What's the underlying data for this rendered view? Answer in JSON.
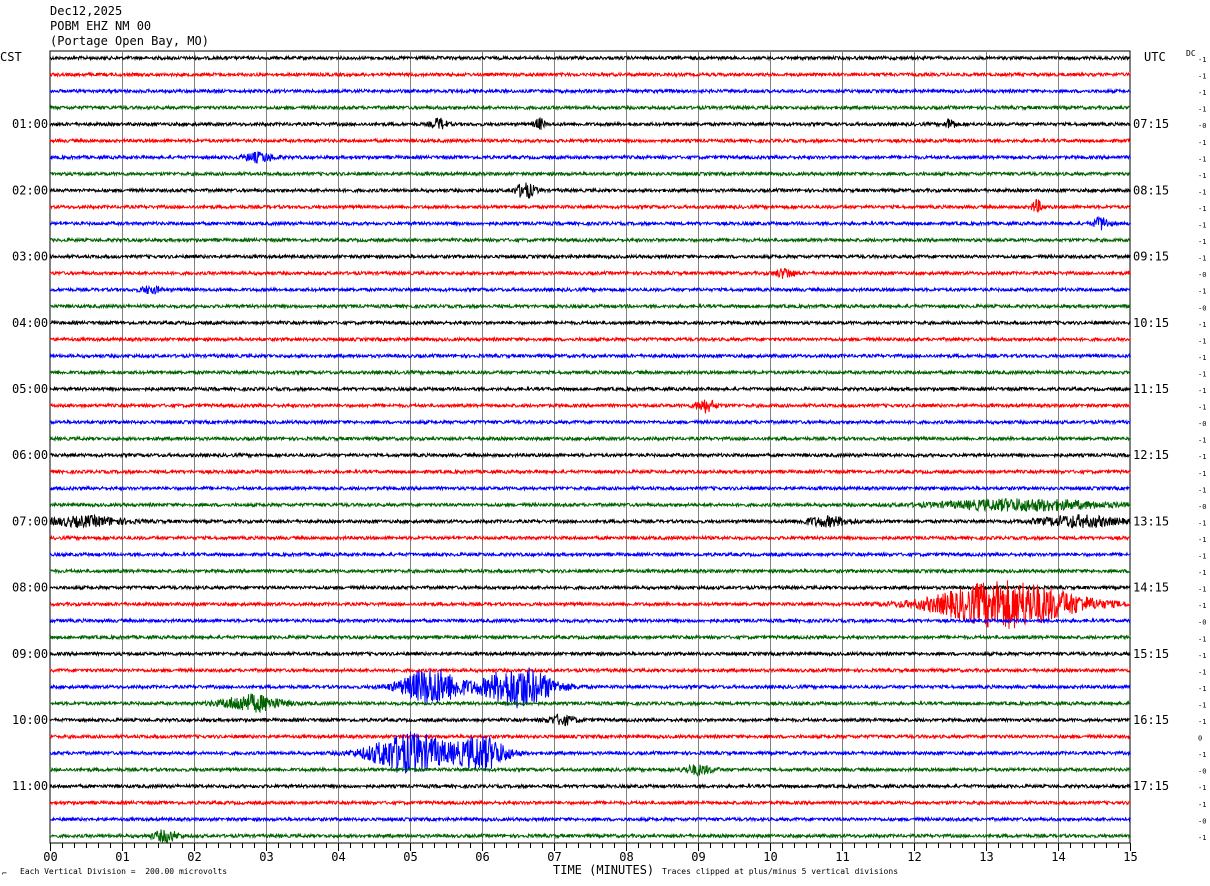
{
  "header": {
    "date": "Dec12,2025",
    "station": "POBM EHZ NM 00",
    "location": "(Portage Open Bay, MO)"
  },
  "left_tz": "CST",
  "right_tz": "UTC",
  "dc_label": "DC",
  "footer": {
    "scale": "Each Vertical Division =  200.00 microvolts",
    "xlabel": "TIME (MINUTES)",
    "clip_note": "Traces clipped at plus/minus 5 vertical divisions"
  },
  "chart_data": {
    "type": "line",
    "title": "POBM EHZ NM 00",
    "xlabel": "TIME (MINUTES)",
    "xlim": [
      0,
      15
    ],
    "x_ticks": [
      "00",
      "01",
      "02",
      "03",
      "04",
      "05",
      "06",
      "07",
      "08",
      "09",
      "10",
      "11",
      "12",
      "13",
      "14",
      "15"
    ],
    "trace_colors": [
      "#000000",
      "#ff0000",
      "#0000ff",
      "#006400"
    ],
    "left_labels": [
      {
        "trace": 4,
        "text": "01:00"
      },
      {
        "trace": 8,
        "text": "02:00"
      },
      {
        "trace": 12,
        "text": "03:00"
      },
      {
        "trace": 16,
        "text": "04:00"
      },
      {
        "trace": 20,
        "text": "05:00"
      },
      {
        "trace": 24,
        "text": "06:00"
      },
      {
        "trace": 28,
        "text": "07:00"
      },
      {
        "trace": 32,
        "text": "08:00"
      },
      {
        "trace": 36,
        "text": "09:00"
      },
      {
        "trace": 40,
        "text": "10:00"
      },
      {
        "trace": 44,
        "text": "11:00"
      }
    ],
    "right_labels": [
      {
        "trace": 4,
        "text": "07:15"
      },
      {
        "trace": 8,
        "text": "08:15"
      },
      {
        "trace": 12,
        "text": "09:15"
      },
      {
        "trace": 16,
        "text": "10:15"
      },
      {
        "trace": 20,
        "text": "11:15"
      },
      {
        "trace": 24,
        "text": "12:15"
      },
      {
        "trace": 28,
        "text": "13:15"
      },
      {
        "trace": 32,
        "text": "14:15"
      },
      {
        "trace": 36,
        "text": "15:15"
      },
      {
        "trace": 40,
        "text": "16:15"
      },
      {
        "trace": 44,
        "text": "17:15"
      }
    ],
    "dc_offsets": [
      "-1",
      "-1",
      "-1",
      "-1",
      "-0",
      "-1",
      "-1",
      "-1",
      "-1",
      "-1",
      "-1",
      "-1",
      "-1",
      "-0",
      "-1",
      "-0",
      "-1",
      "-1",
      "-1",
      "-1",
      "-1",
      "-1",
      "-0",
      "-1",
      "-1",
      "-1",
      "-1",
      "-0",
      "-1",
      "-1",
      "-1",
      "-1",
      "-1",
      "-1",
      "-0",
      "-1",
      "-1",
      "-1",
      "-1",
      "-1",
      "-1",
      "0",
      "-1",
      "-0",
      "-1",
      "-1",
      "-0",
      "-1"
    ],
    "events": [
      {
        "trace": 4,
        "minute": 5.4,
        "amp": 0.6,
        "dur": 0.15
      },
      {
        "trace": 4,
        "minute": 6.8,
        "amp": 0.6,
        "dur": 0.1
      },
      {
        "trace": 4,
        "minute": 12.5,
        "amp": 0.6,
        "dur": 0.1
      },
      {
        "trace": 6,
        "minute": 2.9,
        "amp": 0.5,
        "dur": 0.3
      },
      {
        "trace": 8,
        "minute": 6.6,
        "amp": 0.8,
        "dur": 0.2
      },
      {
        "trace": 9,
        "minute": 13.7,
        "amp": 0.7,
        "dur": 0.1
      },
      {
        "trace": 10,
        "minute": 14.6,
        "amp": 0.7,
        "dur": 0.15
      },
      {
        "trace": 13,
        "minute": 10.2,
        "amp": 0.5,
        "dur": 0.2
      },
      {
        "trace": 14,
        "minute": 1.4,
        "amp": 0.4,
        "dur": 0.2
      },
      {
        "trace": 21,
        "minute": 9.1,
        "amp": 0.7,
        "dur": 0.2
      },
      {
        "trace": 27,
        "minute": 13.5,
        "amp": 0.6,
        "dur": 1.6
      },
      {
        "trace": 28,
        "minute": 0.5,
        "amp": 0.5,
        "dur": 0.8
      },
      {
        "trace": 28,
        "minute": 10.8,
        "amp": 0.5,
        "dur": 0.5
      },
      {
        "trace": 28,
        "minute": 14.3,
        "amp": 0.6,
        "dur": 0.8
      },
      {
        "trace": 33,
        "minute": 13.3,
        "amp": 2.6,
        "dur": 1.4
      },
      {
        "trace": 38,
        "minute": 5.3,
        "amp": 2.0,
        "dur": 0.6
      },
      {
        "trace": 38,
        "minute": 6.5,
        "amp": 2.2,
        "dur": 0.7
      },
      {
        "trace": 39,
        "minute": 2.8,
        "amp": 0.9,
        "dur": 0.6
      },
      {
        "trace": 40,
        "minute": 7.1,
        "amp": 0.5,
        "dur": 0.3
      },
      {
        "trace": 42,
        "minute": 5.0,
        "amp": 2.2,
        "dur": 0.8
      },
      {
        "trace": 42,
        "minute": 6.0,
        "amp": 1.8,
        "dur": 0.5
      },
      {
        "trace": 43,
        "minute": 9.0,
        "amp": 0.5,
        "dur": 0.3
      },
      {
        "trace": 47,
        "minute": 1.6,
        "amp": 0.6,
        "dur": 0.25
      }
    ]
  }
}
